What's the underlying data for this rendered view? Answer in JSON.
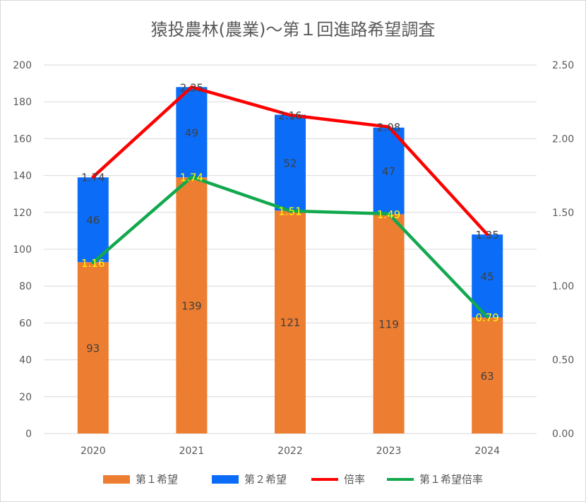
{
  "chart_data": {
    "type": "bar",
    "title": "猿投農林(農業)～第１回進路希望調査",
    "categories": [
      "2020",
      "2021",
      "2022",
      "2023",
      "2024"
    ],
    "series": [
      {
        "name": "第１希望",
        "kind": "bar",
        "axis": "left",
        "values": [
          93,
          139,
          121,
          119,
          63
        ],
        "color": "#ED7D31"
      },
      {
        "name": "第２希望",
        "kind": "bar",
        "axis": "left",
        "values": [
          46,
          49,
          52,
          47,
          45
        ],
        "color": "#0B6CF7"
      },
      {
        "name": "倍率",
        "kind": "line",
        "axis": "right",
        "values": [
          1.74,
          2.35,
          2.16,
          2.08,
          1.35
        ],
        "labels": [
          "1.74",
          "2.35",
          "2.16",
          "2.08",
          "1.35"
        ],
        "color": "#FF0000",
        "label_color": "#404040"
      },
      {
        "name": "第１希望倍率",
        "kind": "line",
        "axis": "right",
        "values": [
          1.16,
          1.74,
          1.51,
          1.49,
          0.79
        ],
        "labels": [
          "1.16",
          "1.74",
          "1.51",
          "1.49",
          "0.79"
        ],
        "color": "#12A84E",
        "label_color": "#FFFF00"
      }
    ],
    "y_left": {
      "min": 0,
      "max": 200,
      "ticks": [
        "0",
        "20",
        "40",
        "60",
        "80",
        "100",
        "120",
        "140",
        "160",
        "180",
        "200"
      ]
    },
    "y_right": {
      "min": 0,
      "max": 2.5,
      "ticks": [
        "0.00",
        "0.50",
        "1.00",
        "1.50",
        "2.00",
        "2.50"
      ]
    },
    "grid": true,
    "legend_position": "bottom"
  }
}
